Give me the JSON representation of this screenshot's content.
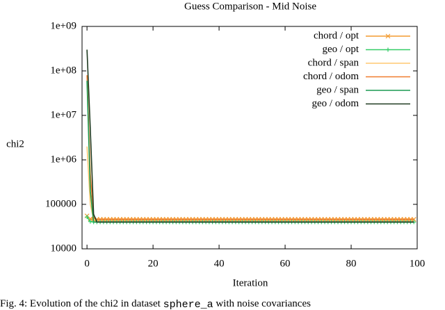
{
  "chart_data": {
    "type": "line",
    "title": "Guess Comparison - Mid Noise",
    "x_label": "Iteration",
    "y_label": "chi2",
    "caption": [
      "Fig. 4: Evolution of the chi2 in dataset ",
      "sphere_a",
      " with noise covariances"
    ],
    "log_y": true,
    "legend": "top-right",
    "xlim": [
      -1.5,
      100
    ],
    "xticks": [
      0,
      20,
      40,
      60,
      80,
      100
    ],
    "ylim": [
      10000,
      1000000000
    ],
    "yticks": [
      10000,
      100000,
      {
        "value": 1000000,
        "label": "1e+06"
      },
      {
        "value": 10000000,
        "label": "1e+07"
      },
      {
        "value": 100000000,
        "label": "1e+08"
      },
      {
        "value": 1000000000,
        "label": "1e+09"
      }
    ],
    "x": [
      0,
      1,
      2,
      3,
      4,
      5,
      6,
      7,
      8,
      9,
      10,
      11,
      12,
      13,
      14,
      15,
      16,
      17,
      18,
      19,
      20,
      21,
      22,
      23,
      24,
      25,
      26,
      27,
      28,
      29,
      30,
      31,
      32,
      33,
      34,
      35,
      36,
      37,
      38,
      39,
      40,
      41,
      42,
      43,
      44,
      45,
      46,
      47,
      48,
      49,
      50,
      51,
      52,
      53,
      54,
      55,
      56,
      57,
      58,
      59,
      60,
      61,
      62,
      63,
      64,
      65,
      66,
      67,
      68,
      69,
      70,
      71,
      72,
      73,
      74,
      75,
      76,
      77,
      78,
      79,
      80,
      81,
      82,
      83,
      84,
      85,
      86,
      87,
      88,
      89,
      90,
      91,
      92,
      93,
      94,
      95,
      96,
      97,
      98,
      99
    ],
    "series": [
      {
        "name": "chord / opt",
        "color": "#f39a2e",
        "marker": "x",
        "values": [
          55000,
          47000,
          46000,
          46000,
          46000,
          46000,
          46000,
          46000,
          46000,
          46000,
          46000,
          46000,
          46000,
          46000,
          46000,
          46000,
          46000,
          46000,
          46000,
          46000,
          46000,
          46000,
          46000,
          46000,
          46000,
          46000,
          46000,
          46000,
          46000,
          46000,
          46000,
          46000,
          46000,
          46000,
          46000,
          46000,
          46000,
          46000,
          46000,
          46000,
          46000,
          46000,
          46000,
          46000,
          46000,
          46000,
          46000,
          46000,
          46000,
          46000,
          46000,
          46000,
          46000,
          46000,
          46000,
          46000,
          46000,
          46000,
          46000,
          46000,
          46000,
          46000,
          46000,
          46000,
          46000,
          46000,
          46000,
          46000,
          46000,
          46000,
          46000,
          46000,
          46000,
          46000,
          46000,
          46000,
          46000,
          46000,
          46000,
          46000,
          46000,
          46000,
          46000,
          46000,
          46000,
          46000,
          46000,
          46000,
          46000,
          46000,
          46000,
          46000,
          46000,
          46000,
          46000,
          46000,
          46000,
          46000,
          46000,
          46000
        ]
      },
      {
        "name": "geo / opt",
        "color": "#33cc66",
        "marker": "+",
        "values": [
          52000,
          41000,
          40000,
          40000,
          40000,
          40000,
          40000,
          40000,
          40000,
          40000,
          40000,
          40000,
          40000,
          40000,
          40000,
          40000,
          40000,
          40000,
          40000,
          40000,
          40000,
          40000,
          40000,
          40000,
          40000,
          40000,
          40000,
          40000,
          40000,
          40000,
          40000,
          40000,
          40000,
          40000,
          40000,
          40000,
          40000,
          40000,
          40000,
          40000,
          40000,
          40000,
          40000,
          40000,
          40000,
          40000,
          40000,
          40000,
          40000,
          40000,
          40000,
          40000,
          40000,
          40000,
          40000,
          40000,
          40000,
          40000,
          40000,
          40000,
          40000,
          40000,
          40000,
          40000,
          40000,
          40000,
          40000,
          40000,
          40000,
          40000,
          40000,
          40000,
          40000,
          40000,
          40000,
          40000,
          40000,
          40000,
          40000,
          40000,
          40000,
          40000,
          40000,
          40000,
          40000,
          40000,
          40000,
          40000,
          40000,
          40000,
          40000,
          40000,
          40000,
          40000,
          40000,
          40000,
          40000,
          40000,
          40000,
          40000
        ]
      },
      {
        "name": "chord / span",
        "color": "#ffc870",
        "values": [
          2000000,
          100000,
          46000,
          46000,
          46000,
          46000,
          46000,
          46000,
          46000,
          46000,
          46000,
          46000,
          46000,
          46000,
          46000,
          46000,
          46000,
          46000,
          46000,
          46000,
          46000,
          46000,
          46000,
          46000,
          46000,
          46000,
          46000,
          46000,
          46000,
          46000,
          46000,
          46000,
          46000,
          46000,
          46000,
          46000,
          46000,
          46000,
          46000,
          46000,
          46000,
          46000,
          46000,
          46000,
          46000,
          46000,
          46000,
          46000,
          46000,
          46000,
          46000,
          46000,
          46000,
          46000,
          46000,
          46000,
          46000,
          46000,
          46000,
          46000,
          46000,
          46000,
          46000,
          46000,
          46000,
          46000,
          46000,
          46000,
          46000,
          46000,
          46000,
          46000,
          46000,
          46000,
          46000,
          46000,
          46000,
          46000,
          46000,
          46000,
          46000,
          46000,
          46000,
          46000,
          46000,
          46000,
          46000,
          46000,
          46000,
          46000,
          46000,
          46000,
          46000,
          46000,
          46000,
          46000,
          46000,
          46000,
          46000,
          46000
        ]
      },
      {
        "name": "chord / odom",
        "color": "#f07d2e",
        "values": [
          80000000,
          500000,
          50000,
          46000,
          46000,
          46000,
          46000,
          46000,
          46000,
          46000,
          46000,
          46000,
          46000,
          46000,
          46000,
          46000,
          46000,
          46000,
          46000,
          46000,
          46000,
          46000,
          46000,
          46000,
          46000,
          46000,
          46000,
          46000,
          46000,
          46000,
          46000,
          46000,
          46000,
          46000,
          46000,
          46000,
          46000,
          46000,
          46000,
          46000,
          46000,
          46000,
          46000,
          46000,
          46000,
          46000,
          46000,
          46000,
          46000,
          46000,
          46000,
          46000,
          46000,
          46000,
          46000,
          46000,
          46000,
          46000,
          46000,
          46000,
          46000,
          46000,
          46000,
          46000,
          46000,
          46000,
          46000,
          46000,
          46000,
          46000,
          46000,
          46000,
          46000,
          46000,
          46000,
          46000,
          46000,
          46000,
          46000,
          46000,
          46000,
          46000,
          46000,
          46000,
          46000,
          46000,
          46000,
          46000,
          46000,
          46000,
          46000,
          46000,
          46000,
          46000,
          46000,
          46000,
          46000,
          46000,
          46000,
          46000
        ]
      },
      {
        "name": "geo / span",
        "color": "#1a9a50",
        "values": [
          60000000,
          200000,
          40000,
          40000,
          40000,
          40000,
          40000,
          40000,
          40000,
          40000,
          40000,
          40000,
          40000,
          40000,
          40000,
          40000,
          40000,
          40000,
          40000,
          40000,
          40000,
          40000,
          40000,
          40000,
          40000,
          40000,
          40000,
          40000,
          40000,
          40000,
          40000,
          40000,
          40000,
          40000,
          40000,
          40000,
          40000,
          40000,
          40000,
          40000,
          40000,
          40000,
          40000,
          40000,
          40000,
          40000,
          40000,
          40000,
          40000,
          40000,
          40000,
          40000,
          40000,
          40000,
          40000,
          40000,
          40000,
          40000,
          40000,
          40000,
          40000,
          40000,
          40000,
          40000,
          40000,
          40000,
          40000,
          40000,
          40000,
          40000,
          40000,
          40000,
          40000,
          40000,
          40000,
          40000,
          40000,
          40000,
          40000,
          40000,
          40000,
          40000,
          40000,
          40000,
          40000,
          40000,
          40000,
          40000,
          40000,
          40000,
          40000,
          40000,
          40000,
          40000,
          40000,
          40000,
          40000,
          40000,
          40000,
          40000
        ]
      },
      {
        "name": "geo / odom",
        "color": "#1f3a20",
        "values": [
          300000000,
          5000000,
          60000,
          40000,
          40000,
          40000,
          40000,
          40000,
          40000,
          40000,
          40000,
          40000,
          40000,
          40000,
          40000,
          40000,
          40000,
          40000,
          40000,
          40000,
          40000,
          40000,
          40000,
          40000,
          40000,
          40000,
          40000,
          40000,
          40000,
          40000,
          40000,
          40000,
          40000,
          40000,
          40000,
          40000,
          40000,
          40000,
          40000,
          40000,
          40000,
          40000,
          40000,
          40000,
          40000,
          40000,
          40000,
          40000,
          40000,
          40000,
          40000,
          40000,
          40000,
          40000,
          40000,
          40000,
          40000,
          40000,
          40000,
          40000,
          40000,
          40000,
          40000,
          40000,
          40000,
          40000,
          40000,
          40000,
          40000,
          40000,
          40000,
          40000,
          40000,
          40000,
          40000,
          40000,
          40000,
          40000,
          40000,
          40000,
          40000,
          40000,
          40000,
          40000,
          40000,
          40000,
          40000,
          40000,
          40000,
          40000,
          40000,
          40000,
          40000,
          40000,
          40000,
          40000,
          40000,
          40000,
          40000,
          40000
        ]
      }
    ]
  }
}
